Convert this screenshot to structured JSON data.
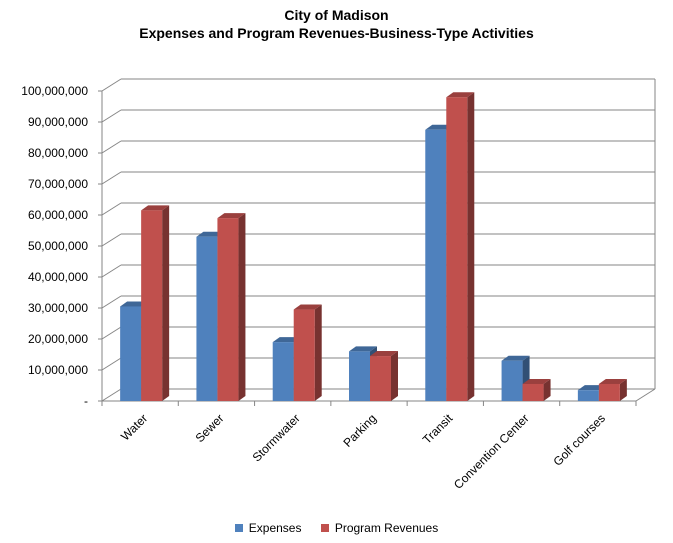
{
  "chart_data": {
    "type": "bar",
    "title": "City of Madison",
    "subtitle": "Expenses and Program Revenues-Business-Type Activities",
    "xlabel": "",
    "ylabel": "",
    "categories": [
      "Water",
      "Sewer",
      "Stormwater",
      "Parking",
      "Transit",
      "Convention Center",
      "Golf courses"
    ],
    "series": [
      {
        "name": "Expenses",
        "color": "#4f81bd",
        "values": [
          30500000,
          53000000,
          19000000,
          16000000,
          87500000,
          13000000,
          3500000
        ]
      },
      {
        "name": "Program Revenues",
        "color": "#c0504d",
        "values": [
          61500000,
          59000000,
          29500000,
          14500000,
          98000000,
          5500000,
          5500000
        ]
      }
    ],
    "ylim": [
      0,
      100000000
    ],
    "yticks": [
      0,
      10000000,
      20000000,
      30000000,
      40000000,
      50000000,
      60000000,
      70000000,
      80000000,
      90000000,
      100000000
    ],
    "ytick_labels": [
      "-",
      "10,000,000",
      "20,000,000",
      "30,000,000",
      "40,000,000",
      "50,000,000",
      "60,000,000",
      "70,000,000",
      "80,000,000",
      "90,000,000",
      "100,000,000"
    ],
    "grid": true,
    "legend_position": "bottom"
  }
}
